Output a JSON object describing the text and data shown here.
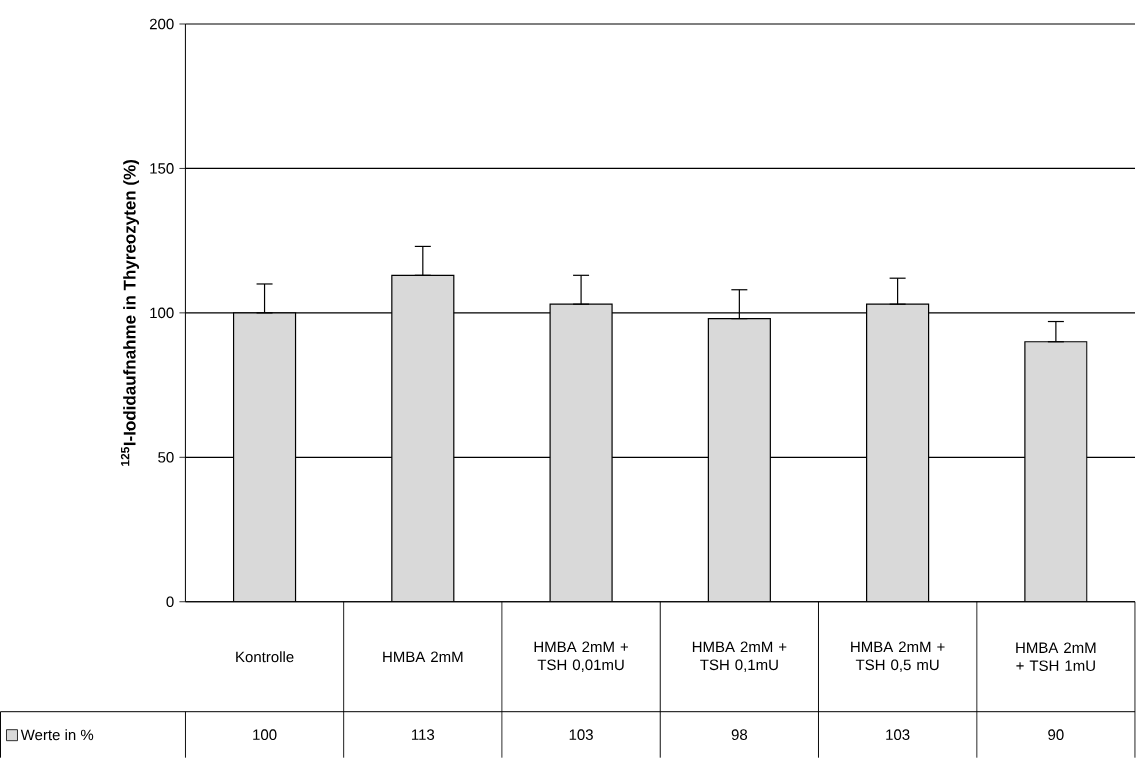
{
  "chart_data": {
    "type": "bar",
    "ylabel": "$^{125}$I-Iodidaufnahme in Thyreozyten (%)",
    "categories": [
      "Kontrolle",
      "HMBA 2mM",
      "HMBA 2mM + TSH 0,01mU",
      "HMBA 2mM + TSH 0,1mU",
      "HMBA 2mM + TSH 0,5 mU",
      "HMBA 2mM + TSH 1mU"
    ],
    "series": [
      {
        "name": "Werte in %",
        "color": "#d9d9d9",
        "values": [
          100,
          113,
          103,
          98,
          103,
          90
        ],
        "errors": [
          [
            100,
            110
          ],
          [
            113,
            123
          ],
          [
            103,
            113
          ],
          [
            98,
            108
          ],
          [
            103,
            112
          ],
          [
            90,
            97
          ]
        ]
      }
    ],
    "ylim": [
      0,
      200
    ],
    "yticks": [
      0,
      50,
      100,
      150,
      200
    ],
    "grid": "y",
    "legend": "bottom",
    "data_labels": true
  }
}
